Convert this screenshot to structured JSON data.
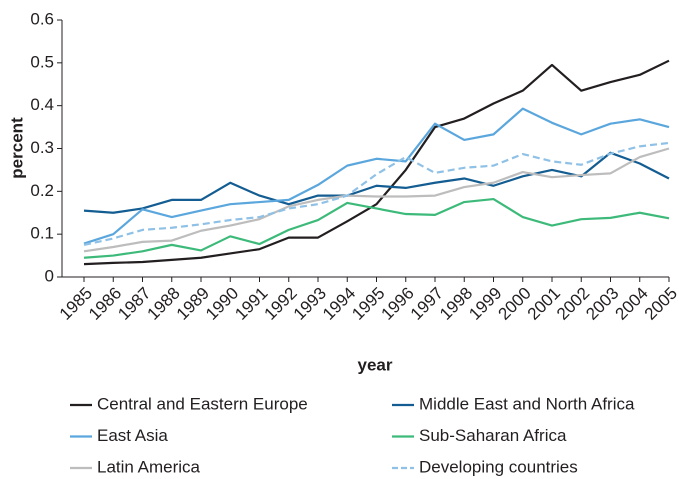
{
  "chart_data": {
    "type": "line",
    "xlabel": "year",
    "ylabel": "percent",
    "x": [
      1985,
      1986,
      1987,
      1988,
      1989,
      1990,
      1991,
      1992,
      1993,
      1994,
      1995,
      1996,
      1997,
      1998,
      1999,
      2000,
      2001,
      2002,
      2003,
      2004,
      2005
    ],
    "xlim": [
      1985,
      2005
    ],
    "ylim": [
      0,
      0.6
    ],
    "yticks": [
      0,
      0.1,
      0.2,
      0.3,
      0.4,
      0.5,
      0.6
    ],
    "series": [
      {
        "name": "Central and Eastern Europe",
        "color": "#231f20",
        "dashed": false,
        "values": [
          0.03,
          0.033,
          0.035,
          0.04,
          0.045,
          0.055,
          0.065,
          0.092,
          0.092,
          0.13,
          0.17,
          0.25,
          0.35,
          0.37,
          0.405,
          0.435,
          0.495,
          0.435,
          0.455,
          0.472,
          0.505
        ]
      },
      {
        "name": "Middle East and North Africa",
        "color": "#135d92",
        "dashed": false,
        "values": [
          0.155,
          0.15,
          0.16,
          0.18,
          0.18,
          0.22,
          0.19,
          0.17,
          0.19,
          0.19,
          0.213,
          0.208,
          0.22,
          0.23,
          0.213,
          0.235,
          0.25,
          0.235,
          0.29,
          0.265,
          0.23
        ]
      },
      {
        "name": "East Asia",
        "color": "#5ba7dd",
        "dashed": false,
        "values": [
          0.078,
          0.1,
          0.158,
          0.14,
          0.155,
          0.17,
          0.175,
          0.18,
          0.215,
          0.26,
          0.276,
          0.27,
          0.358,
          0.32,
          0.333,
          0.393,
          0.36,
          0.333,
          0.358,
          0.368,
          0.35
        ]
      },
      {
        "name": "Sub-Saharan Africa",
        "color": "#3dba7a",
        "dashed": false,
        "values": [
          0.045,
          0.05,
          0.06,
          0.075,
          0.062,
          0.095,
          0.077,
          0.11,
          0.133,
          0.173,
          0.16,
          0.147,
          0.145,
          0.175,
          0.182,
          0.14,
          0.12,
          0.135,
          0.138,
          0.15,
          0.137
        ]
      },
      {
        "name": "Latin America",
        "color": "#bdbdbd",
        "dashed": false,
        "values": [
          0.06,
          0.07,
          0.082,
          0.085,
          0.108,
          0.12,
          0.135,
          0.165,
          0.18,
          0.19,
          0.188,
          0.188,
          0.19,
          0.21,
          0.22,
          0.245,
          0.233,
          0.238,
          0.242,
          0.28,
          0.3
        ]
      },
      {
        "name": "Developing countries",
        "color": "#8fc1e6",
        "dashed": true,
        "values": [
          0.075,
          0.09,
          0.11,
          0.115,
          0.123,
          0.133,
          0.14,
          0.16,
          0.17,
          0.19,
          0.24,
          0.28,
          0.243,
          0.255,
          0.26,
          0.287,
          0.27,
          0.262,
          0.288,
          0.305,
          0.313
        ]
      }
    ]
  }
}
